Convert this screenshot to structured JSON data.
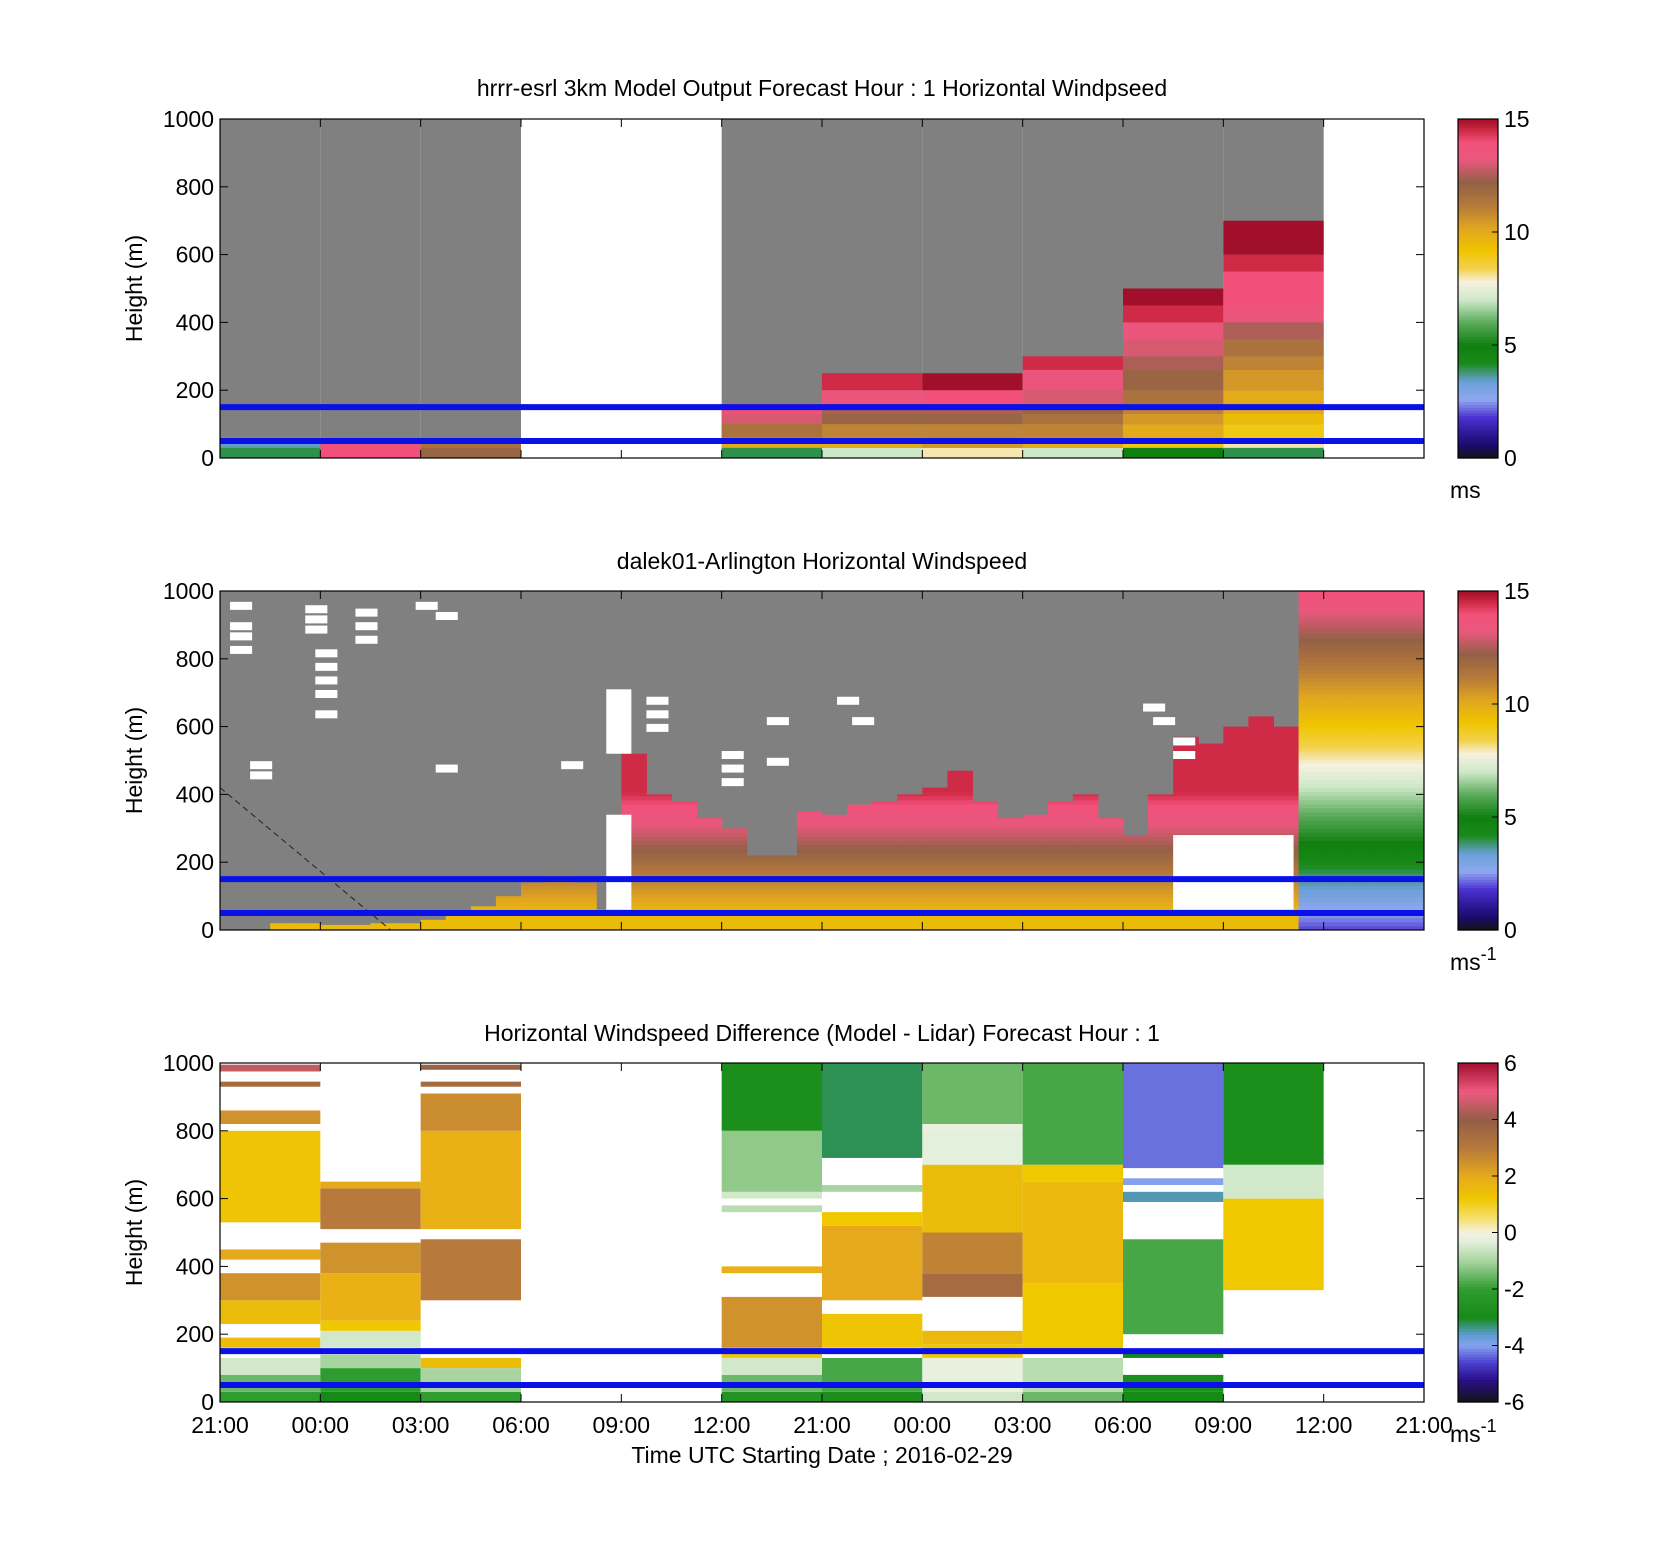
{
  "chart_data": [
    {
      "type": "heatmap",
      "title": "hrrr-esrl 3km Model Output   Forecast Hour : 1 Horizontal Windpseed",
      "ylabel": "Height (m)",
      "ylim": [
        0,
        1000
      ],
      "yticks": [
        "0",
        "200",
        "400",
        "600",
        "800",
        "1000"
      ],
      "colorbar": {
        "range": [
          0,
          15
        ],
        "ticks": [
          "0",
          "5",
          "10",
          "15"
        ],
        "unit": "ms",
        "unit_sup": ""
      },
      "reference_lines": [
        50,
        150
      ],
      "columns": [
        {
          "x0": 0,
          "x1": 1,
          "bins": [
            [
              0,
              30,
              4
            ],
            [
              30,
              60,
              3.5
            ]
          ]
        },
        {
          "x0": 1,
          "x1": 2,
          "bins": [
            [
              0,
              30,
              14
            ],
            [
              30,
              60,
              13.5
            ]
          ]
        },
        {
          "x0": 2,
          "x1": 3,
          "bins": [
            [
              0,
              30,
              12
            ],
            [
              30,
              60,
              11.5
            ]
          ]
        },
        {
          "x0": 3,
          "x1": 5,
          "bins": []
        },
        {
          "x0": 5,
          "x1": 6,
          "bins": [
            [
              0,
              30,
              4
            ],
            [
              30,
              60,
              10
            ],
            [
              60,
              100,
              11.5
            ],
            [
              100,
              130,
              13
            ],
            [
              130,
              160,
              14
            ]
          ]
        },
        {
          "x0": 6,
          "x1": 7,
          "bins": [
            [
              0,
              30,
              7
            ],
            [
              30,
              60,
              10
            ],
            [
              60,
              100,
              11
            ],
            [
              100,
              130,
              12
            ],
            [
              130,
              160,
              12.5
            ],
            [
              160,
              200,
              13.5
            ],
            [
              200,
              250,
              14.5
            ]
          ]
        },
        {
          "x0": 7,
          "x1": 8,
          "bins": [
            [
              0,
              30,
              8
            ],
            [
              30,
              60,
              10.5
            ],
            [
              60,
              100,
              11
            ],
            [
              100,
              130,
              12
            ],
            [
              130,
              160,
              12.5
            ],
            [
              160,
              200,
              14
            ],
            [
              200,
              250,
              15
            ]
          ]
        },
        {
          "x0": 8,
          "x1": 9,
          "bins": [
            [
              0,
              30,
              7
            ],
            [
              30,
              60,
              10
            ],
            [
              60,
              100,
              11
            ],
            [
              100,
              130,
              11.5
            ],
            [
              130,
              160,
              12
            ],
            [
              160,
              200,
              13
            ],
            [
              200,
              260,
              13.5
            ],
            [
              260,
              300,
              14.5
            ]
          ]
        },
        {
          "x0": 9,
          "x1": 10,
          "bins": [
            [
              0,
              30,
              5
            ],
            [
              30,
              60,
              9
            ],
            [
              60,
              100,
              10
            ],
            [
              100,
              130,
              10.5
            ],
            [
              130,
              160,
              11
            ],
            [
              160,
              200,
              11.5
            ],
            [
              200,
              260,
              12
            ],
            [
              260,
              300,
              12.5
            ],
            [
              300,
              350,
              13
            ],
            [
              350,
              400,
              13.5
            ],
            [
              400,
              450,
              14.5
            ],
            [
              450,
              500,
              15
            ]
          ]
        },
        {
          "x0": 10,
          "x1": 11,
          "bins": [
            [
              0,
              30,
              4
            ],
            [
              30,
              60,
              8
            ],
            [
              60,
              100,
              9
            ],
            [
              100,
              130,
              9.5
            ],
            [
              130,
              160,
              10
            ],
            [
              160,
              200,
              10
            ],
            [
              200,
              260,
              10.5
            ],
            [
              260,
              300,
              11
            ],
            [
              300,
              350,
              11.5
            ],
            [
              350,
              400,
              12.5
            ],
            [
              400,
              450,
              13.5
            ],
            [
              450,
              500,
              14
            ],
            [
              500,
              550,
              14
            ],
            [
              550,
              600,
              14.5
            ],
            [
              600,
              700,
              15
            ]
          ]
        },
        {
          "x0": 11,
          "x1": 12,
          "bins": []
        }
      ]
    },
    {
      "type": "heatmap",
      "title": "dalek01-Arlington  Horizontal Windspeed",
      "ylabel": "Height (m)",
      "ylim": [
        0,
        1000
      ],
      "yticks": [
        "0",
        "200",
        "400",
        "600",
        "800",
        "1000"
      ],
      "colorbar": {
        "range": [
          0,
          15
        ],
        "ticks": [
          "0",
          "5",
          "10",
          "15"
        ],
        "unit": "ms",
        "unit_sup": "-1"
      },
      "reference_lines": [
        50,
        150
      ],
      "dashed_line": [
        [
          0,
          420
        ],
        [
          1.7,
          0
        ]
      ],
      "profiles": [
        {
          "x": 0,
          "top": 0
        },
        {
          "x": 0.25,
          "top": 0
        },
        {
          "x": 0.5,
          "top": 20
        },
        {
          "x": 0.75,
          "top": 20
        },
        {
          "x": 1.0,
          "top": 15
        },
        {
          "x": 1.25,
          "top": 15
        },
        {
          "x": 1.5,
          "top": 20
        },
        {
          "x": 1.75,
          "top": 20
        },
        {
          "x": 2.0,
          "top": 30
        },
        {
          "x": 2.25,
          "top": 50
        },
        {
          "x": 2.5,
          "top": 70
        },
        {
          "x": 2.75,
          "top": 100
        },
        {
          "x": 3.0,
          "top": 140
        },
        {
          "x": 3.25,
          "top": 160
        },
        {
          "x": 3.5,
          "top": 140
        },
        {
          "x": 3.75,
          "top": 60
        },
        {
          "x": 4.0,
          "top": 520
        },
        {
          "x": 4.25,
          "top": 400
        },
        {
          "x": 4.5,
          "top": 380
        },
        {
          "x": 4.75,
          "top": 330
        },
        {
          "x": 5.0,
          "top": 300
        },
        {
          "x": 5.25,
          "top": 220
        },
        {
          "x": 5.5,
          "top": 220
        },
        {
          "x": 5.75,
          "top": 350
        },
        {
          "x": 6.0,
          "top": 340
        },
        {
          "x": 6.25,
          "top": 370
        },
        {
          "x": 6.5,
          "top": 380
        },
        {
          "x": 6.75,
          "top": 400
        },
        {
          "x": 7.0,
          "top": 420
        },
        {
          "x": 7.25,
          "top": 470
        },
        {
          "x": 7.5,
          "top": 380
        },
        {
          "x": 7.75,
          "top": 330
        },
        {
          "x": 8.0,
          "top": 340
        },
        {
          "x": 8.25,
          "top": 380
        },
        {
          "x": 8.5,
          "top": 400
        },
        {
          "x": 8.75,
          "top": 330
        },
        {
          "x": 9.0,
          "top": 280
        },
        {
          "x": 9.25,
          "top": 400
        },
        {
          "x": 9.5,
          "top": 570
        },
        {
          "x": 9.75,
          "top": 550
        },
        {
          "x": 10.0,
          "top": 600
        },
        {
          "x": 10.25,
          "top": 630
        },
        {
          "x": 10.5,
          "top": 600
        },
        {
          "x": 10.75,
          "top": 1000
        },
        {
          "x": 11.0,
          "top": 1000
        },
        {
          "x": 11.25,
          "top": 1000
        },
        {
          "x": 11.5,
          "top": 1000
        },
        {
          "x": 11.75,
          "top": 1000
        }
      ]
    },
    {
      "type": "heatmap",
      "title": "Horizontal Windspeed Difference (Model - Lidar) Forecast Hour : 1",
      "ylabel": "Height (m)",
      "xlabel": "Time UTC  Starting Date ; 2016-02-29",
      "ylim": [
        0,
        1000
      ],
      "yticks": [
        "0",
        "200",
        "400",
        "600",
        "800",
        "1000"
      ],
      "xticks": [
        "21:00",
        "00:00",
        "03:00",
        "06:00",
        "09:00",
        "12:00",
        "21:00",
        "00:00",
        "03:00",
        "06:00",
        "09:00",
        "12:00",
        "21:00"
      ],
      "colorbar": {
        "range": [
          -6,
          6
        ],
        "ticks": [
          "-6",
          "-4",
          "-2",
          "0",
          "2",
          "4",
          "6"
        ],
        "unit": "ms",
        "unit_sup": "-1"
      },
      "reference_lines": [
        50,
        150
      ],
      "columns": [
        {
          "x0": 0,
          "x1": 1,
          "bins": [
            [
              0,
              30,
              -2
            ],
            [
              30,
              80,
              -1.5
            ],
            [
              80,
              130,
              -0.5
            ],
            [
              160,
              190,
              1.5
            ],
            [
              230,
              300,
              1.5
            ],
            [
              300,
              380,
              2.5
            ],
            [
              420,
              450,
              2
            ],
            [
              530,
              800,
              1.3
            ],
            [
              820,
              860,
              2.5
            ],
            [
              930,
              945,
              3.5
            ],
            [
              975,
              995,
              4.5
            ]
          ]
        },
        {
          "x0": 1,
          "x1": 2,
          "bins": [
            [
              0,
              30,
              -3
            ],
            [
              30,
              100,
              -2
            ],
            [
              100,
              140,
              -1
            ],
            [
              160,
              210,
              -0.5
            ],
            [
              210,
              240,
              1.2
            ],
            [
              240,
              380,
              1.8
            ],
            [
              380,
              470,
              2.5
            ],
            [
              510,
              630,
              3
            ],
            [
              630,
              650,
              2
            ]
          ]
        },
        {
          "x0": 2,
          "x1": 3,
          "bins": [
            [
              0,
              30,
              -2
            ],
            [
              30,
              100,
              -1
            ],
            [
              100,
              130,
              1.5
            ],
            [
              300,
              480,
              3
            ],
            [
              510,
              800,
              1.8
            ],
            [
              800,
              910,
              2.6
            ],
            [
              930,
              945,
              3.5
            ],
            [
              980,
              995,
              3.8
            ]
          ]
        },
        {
          "x0": 3,
          "x1": 5,
          "bins": []
        },
        {
          "x0": 5,
          "x1": 6,
          "bins": [
            [
              0,
              30,
              -2.5
            ],
            [
              30,
              80,
              -1.5
            ],
            [
              80,
              130,
              -0.5
            ],
            [
              130,
              160,
              1.2
            ],
            [
              160,
              310,
              2.5
            ],
            [
              380,
              400,
              1.8
            ],
            [
              560,
              580,
              -0.8
            ],
            [
              600,
              620,
              -0.5
            ],
            [
              620,
              800,
              -1.2
            ],
            [
              800,
              1000,
              -2.8
            ]
          ]
        },
        {
          "x0": 6,
          "x1": 7,
          "bins": [
            [
              0,
              30,
              -2.8
            ],
            [
              30,
              130,
              -1.8
            ],
            [
              160,
              260,
              1.3
            ],
            [
              300,
              520,
              2
            ],
            [
              520,
              560,
              1.2
            ],
            [
              620,
              640,
              -1
            ],
            [
              720,
              1000,
              -3.2
            ]
          ]
        },
        {
          "x0": 7,
          "x1": 8,
          "bins": [
            [
              0,
              30,
              -0.5
            ],
            [
              30,
              130,
              -0.2
            ],
            [
              130,
              170,
              1.2
            ],
            [
              170,
              210,
              1.6
            ],
            [
              310,
              380,
              3.5
            ],
            [
              380,
              500,
              2.8
            ],
            [
              500,
              700,
              1.5
            ],
            [
              700,
              800,
              -0.3
            ],
            [
              800,
              820,
              -0.2
            ],
            [
              820,
              1000,
              -1.5
            ]
          ]
        },
        {
          "x0": 8,
          "x1": 9,
          "bins": [
            [
              0,
              30,
              -1.5
            ],
            [
              30,
              130,
              -0.8
            ],
            [
              150,
              350,
              1.2
            ],
            [
              350,
              650,
              1.6
            ],
            [
              650,
              700,
              1.2
            ],
            [
              700,
              1000,
              -1.8
            ]
          ]
        },
        {
          "x0": 9,
          "x1": 10,
          "bins": [
            [
              0,
              30,
              -3
            ],
            [
              30,
              80,
              -2.8
            ],
            [
              130,
              150,
              -3
            ],
            [
              200,
              480,
              -1.8
            ],
            [
              590,
              620,
              -3.5
            ],
            [
              640,
              660,
              -4
            ],
            [
              690,
              1000,
              -4.3
            ]
          ]
        },
        {
          "x0": 10,
          "x1": 11,
          "bins": [
            [
              330,
              600,
              1.2
            ],
            [
              600,
              700,
              -0.5
            ],
            [
              700,
              1000,
              -2.8
            ]
          ]
        },
        {
          "x0": 11,
          "x1": 12,
          "bins": []
        }
      ]
    }
  ]
}
